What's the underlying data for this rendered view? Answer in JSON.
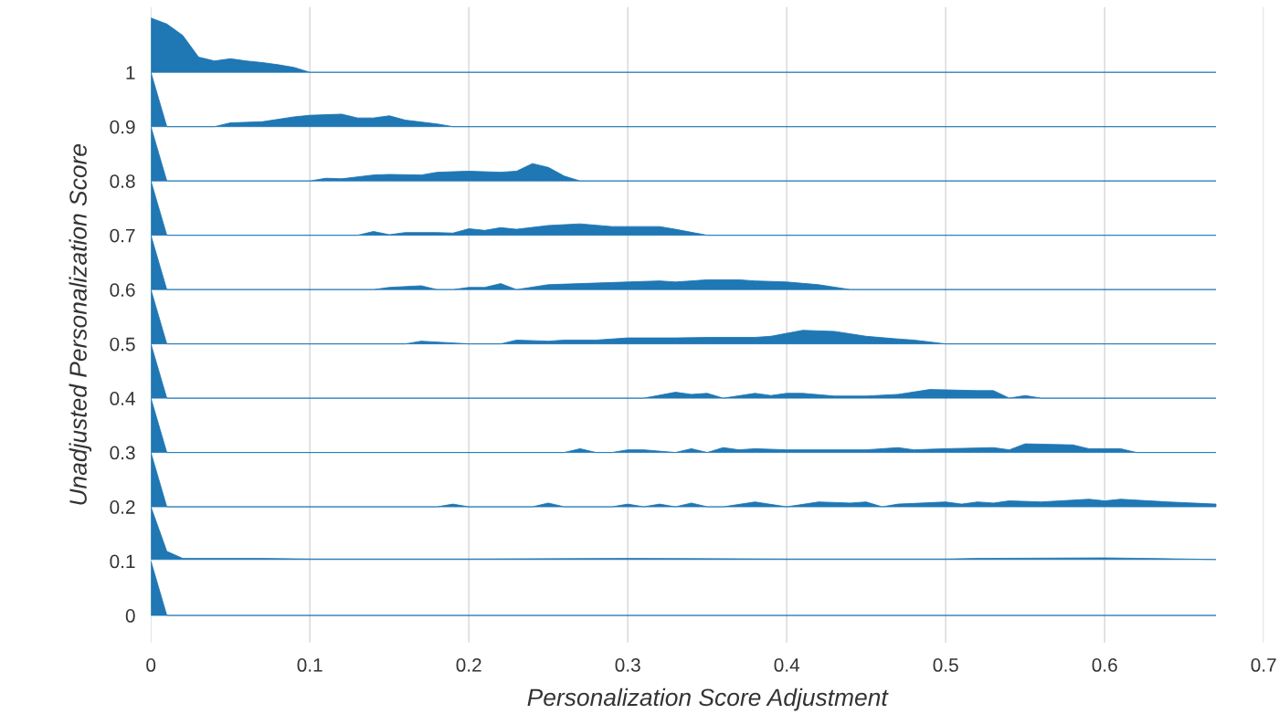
{
  "chart_data": {
    "type": "area",
    "xlabel": "Personalization Score Adjustment",
    "ylabel": "Unadjusted Personalization Score",
    "xlim": [
      0,
      0.7
    ],
    "xticks": [
      0,
      0.1,
      0.2,
      0.3,
      0.4,
      0.5,
      0.6,
      0.7
    ],
    "ylim": [
      -0.05,
      1.12
    ],
    "yticks": [
      0,
      0.1,
      0.2,
      0.3,
      0.4,
      0.5,
      0.6,
      0.7,
      0.8,
      0.9,
      1
    ],
    "grid": "x",
    "series": [
      {
        "color": "#1f77b4",
        "x": [
          0,
          0.01,
          0.67
        ],
        "values": [
          0.1,
          0,
          0
        ]
      },
      {
        "color": "#1f77b4",
        "x": [
          0,
          0.01,
          0.02,
          0.07,
          0.1,
          0.2,
          0.3,
          0.4,
          0.5,
          0.52,
          0.6,
          0.65,
          0.67
        ],
        "values": [
          0.2,
          0.118,
          0.105,
          0.105,
          0.104,
          0.104,
          0.105,
          0.104,
          0.104,
          0.105,
          0.106,
          0.104,
          0.103
        ]
      },
      {
        "color": "#1f77b4",
        "x": [
          0,
          0.01,
          0.18,
          0.19,
          0.2,
          0.24,
          0.25,
          0.26,
          0.29,
          0.3,
          0.31,
          0.32,
          0.33,
          0.34,
          0.35,
          0.36,
          0.38,
          0.4,
          0.42,
          0.44,
          0.45,
          0.46,
          0.47,
          0.5,
          0.51,
          0.52,
          0.53,
          0.54,
          0.56,
          0.59,
          0.6,
          0.61,
          0.64,
          0.67
        ],
        "values": [
          0.3,
          0.2,
          0.2,
          0.205,
          0.2,
          0.2,
          0.207,
          0.2,
          0.2,
          0.205,
          0.2,
          0.205,
          0.2,
          0.207,
          0.2,
          0.2,
          0.209,
          0.2,
          0.209,
          0.207,
          0.209,
          0.2,
          0.205,
          0.209,
          0.205,
          0.209,
          0.207,
          0.211,
          0.209,
          0.214,
          0.211,
          0.214,
          0.209,
          0.205
        ]
      },
      {
        "color": "#1f77b4",
        "x": [
          0,
          0.01,
          0.26,
          0.27,
          0.28,
          0.29,
          0.3,
          0.31,
          0.33,
          0.34,
          0.35,
          0.36,
          0.37,
          0.38,
          0.4,
          0.45,
          0.47,
          0.48,
          0.5,
          0.53,
          0.54,
          0.55,
          0.58,
          0.59,
          0.61,
          0.62,
          0.67
        ],
        "values": [
          0.4,
          0.3,
          0.3,
          0.307,
          0.3,
          0.3,
          0.305,
          0.305,
          0.3,
          0.307,
          0.3,
          0.309,
          0.305,
          0.307,
          0.305,
          0.305,
          0.309,
          0.305,
          0.307,
          0.309,
          0.305,
          0.316,
          0.314,
          0.307,
          0.307,
          0.3,
          0.3
        ]
      },
      {
        "color": "#1f77b4",
        "x": [
          0,
          0.01,
          0.31,
          0.33,
          0.34,
          0.35,
          0.36,
          0.38,
          0.39,
          0.4,
          0.41,
          0.43,
          0.45,
          0.47,
          0.49,
          0.52,
          0.53,
          0.54,
          0.55,
          0.56,
          0.67
        ],
        "values": [
          0.5,
          0.4,
          0.4,
          0.411,
          0.407,
          0.409,
          0.4,
          0.409,
          0.405,
          0.409,
          0.409,
          0.404,
          0.404,
          0.407,
          0.416,
          0.414,
          0.414,
          0.4,
          0.405,
          0.4,
          0.4
        ]
      },
      {
        "color": "#1f77b4",
        "x": [
          0,
          0.01,
          0.16,
          0.17,
          0.2,
          0.22,
          0.23,
          0.25,
          0.26,
          0.28,
          0.3,
          0.33,
          0.35,
          0.38,
          0.39,
          0.41,
          0.43,
          0.45,
          0.47,
          0.48,
          0.5,
          0.67
        ],
        "values": [
          0.6,
          0.5,
          0.5,
          0.505,
          0.5,
          0.5,
          0.507,
          0.505,
          0.507,
          0.507,
          0.511,
          0.511,
          0.512,
          0.512,
          0.514,
          0.525,
          0.523,
          0.514,
          0.509,
          0.507,
          0.5,
          0.5
        ]
      },
      {
        "color": "#1f77b4",
        "x": [
          0,
          0.01,
          0.14,
          0.15,
          0.17,
          0.18,
          0.19,
          0.2,
          0.21,
          0.22,
          0.23,
          0.25,
          0.27,
          0.3,
          0.32,
          0.33,
          0.35,
          0.37,
          0.38,
          0.4,
          0.42,
          0.44,
          0.67
        ],
        "values": [
          0.7,
          0.6,
          0.6,
          0.604,
          0.607,
          0.6,
          0.6,
          0.604,
          0.604,
          0.611,
          0.6,
          0.609,
          0.611,
          0.614,
          0.616,
          0.614,
          0.618,
          0.618,
          0.616,
          0.614,
          0.609,
          0.6,
          0.6
        ]
      },
      {
        "color": "#1f77b4",
        "x": [
          0,
          0.01,
          0.13,
          0.14,
          0.15,
          0.16,
          0.18,
          0.19,
          0.2,
          0.21,
          0.22,
          0.23,
          0.25,
          0.27,
          0.29,
          0.32,
          0.33,
          0.35,
          0.67
        ],
        "values": [
          0.8,
          0.7,
          0.7,
          0.707,
          0.701,
          0.705,
          0.705,
          0.704,
          0.712,
          0.709,
          0.714,
          0.711,
          0.718,
          0.721,
          0.716,
          0.716,
          0.711,
          0.7,
          0.7
        ]
      },
      {
        "color": "#1f77b4",
        "x": [
          0,
          0.01,
          0.1,
          0.11,
          0.12,
          0.14,
          0.15,
          0.17,
          0.18,
          0.2,
          0.22,
          0.23,
          0.24,
          0.25,
          0.26,
          0.27,
          0.67
        ],
        "values": [
          0.9,
          0.8,
          0.8,
          0.805,
          0.804,
          0.811,
          0.812,
          0.811,
          0.816,
          0.818,
          0.816,
          0.818,
          0.832,
          0.825,
          0.809,
          0.8,
          0.8
        ]
      },
      {
        "color": "#1f77b4",
        "x": [
          0,
          0.01,
          0.04,
          0.05,
          0.07,
          0.09,
          0.1,
          0.12,
          0.13,
          0.14,
          0.15,
          0.16,
          0.18,
          0.19,
          0.67
        ],
        "values": [
          1.0,
          0.9,
          0.9,
          0.907,
          0.909,
          0.918,
          0.921,
          0.923,
          0.916,
          0.916,
          0.92,
          0.912,
          0.905,
          0.9,
          0.9
        ]
      },
      {
        "color": "#1f77b4",
        "x": [
          0,
          0.01,
          0.02,
          0.03,
          0.04,
          0.05,
          0.06,
          0.07,
          0.08,
          0.09,
          0.1,
          0.67
        ],
        "values": [
          1.1,
          1.089,
          1.068,
          1.028,
          1.021,
          1.025,
          1.021,
          1.018,
          1.014,
          1.009,
          1.0,
          1.0
        ]
      }
    ]
  }
}
